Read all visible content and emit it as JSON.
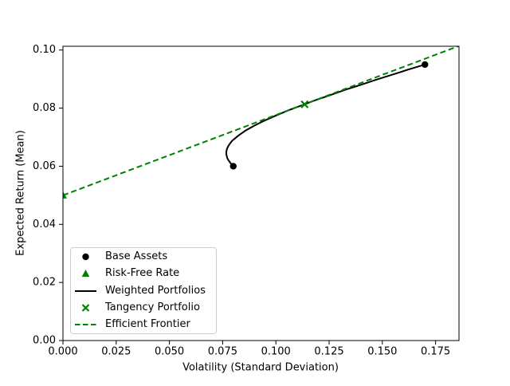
{
  "figure": {
    "xlabel": "Volatility (Standard Deviation)",
    "ylabel": "Expected Return (Mean)"
  },
  "colors": {
    "accent_green": "#008000",
    "line_black": "#000000",
    "legend_border": "#cccccc"
  },
  "legend": {
    "position": "lower left",
    "items": [
      {
        "label": "Base Assets",
        "marker": "circle",
        "color": "#000000"
      },
      {
        "label": "Risk-Free Rate",
        "marker": "triangle-up",
        "color": "#008000"
      },
      {
        "label": "Weighted Portfolios",
        "marker": "solid-line",
        "color": "#000000"
      },
      {
        "label": "Tangency Portfolio",
        "marker": "x",
        "color": "#008000"
      },
      {
        "label": "Efficient Frontier",
        "marker": "dashed-line",
        "color": "#008000"
      }
    ]
  },
  "chart_data": {
    "type": "line",
    "title": "",
    "xlabel": "Volatility (Standard Deviation)",
    "ylabel": "Expected Return (Mean)",
    "xlim": [
      0,
      0.186
    ],
    "ylim": [
      0,
      0.1013
    ],
    "grid": false,
    "legend_position": "lower left",
    "xticks": {
      "values": [
        0,
        0.025,
        0.05,
        0.075,
        0.1,
        0.125,
        0.15,
        0.175
      ],
      "labels": [
        "0.000",
        "0.025",
        "0.050",
        "0.075",
        "0.100",
        "0.125",
        "0.150",
        "0.175"
      ]
    },
    "yticks": {
      "values": [
        0,
        0.02,
        0.04,
        0.06,
        0.08,
        0.1
      ],
      "labels": [
        "0.00",
        "0.02",
        "0.04",
        "0.06",
        "0.08",
        "0.10"
      ]
    },
    "series": [
      {
        "name": "Base Assets",
        "kind": "scatter",
        "marker": "circle",
        "color": "#000000",
        "points": [
          [
            0.08,
            0.06
          ],
          [
            0.17,
            0.095
          ]
        ]
      },
      {
        "name": "Risk-Free Rate",
        "kind": "scatter",
        "marker": "triangle-up",
        "color": "#008000",
        "points": [
          [
            0.0,
            0.05
          ]
        ]
      },
      {
        "name": "Weighted Portfolios",
        "kind": "line",
        "style": "solid",
        "color": "#000000",
        "points": [
          [
            0.08,
            0.06
          ],
          [
            0.0789,
            0.0609
          ],
          [
            0.078,
            0.0618
          ],
          [
            0.0773,
            0.0626
          ],
          [
            0.0769,
            0.0635
          ],
          [
            0.0767,
            0.0644
          ],
          [
            0.0768,
            0.0653
          ],
          [
            0.0771,
            0.0661
          ],
          [
            0.0777,
            0.067
          ],
          [
            0.0785,
            0.0679
          ],
          [
            0.0795,
            0.0688
          ],
          [
            0.0823,
            0.0705
          ],
          [
            0.0858,
            0.0723
          ],
          [
            0.09,
            0.074
          ],
          [
            0.0949,
            0.0758
          ],
          [
            0.1002,
            0.0775
          ],
          [
            0.1061,
            0.0793
          ],
          [
            0.1123,
            0.081
          ],
          [
            0.1188,
            0.0828
          ],
          [
            0.1256,
            0.0845
          ],
          [
            0.1326,
            0.0863
          ],
          [
            0.1398,
            0.088
          ],
          [
            0.1471,
            0.0898
          ],
          [
            0.1546,
            0.0915
          ],
          [
            0.1623,
            0.0933
          ],
          [
            0.17,
            0.095
          ]
        ]
      },
      {
        "name": "Tangency Portfolio",
        "kind": "scatter",
        "marker": "x",
        "color": "#008000",
        "points": [
          [
            0.1135,
            0.0813
          ]
        ]
      },
      {
        "name": "Efficient Frontier",
        "kind": "line",
        "style": "dashed",
        "color": "#008000",
        "points": [
          [
            0.0,
            0.05
          ],
          [
            0.186,
            0.1014
          ]
        ]
      }
    ]
  }
}
